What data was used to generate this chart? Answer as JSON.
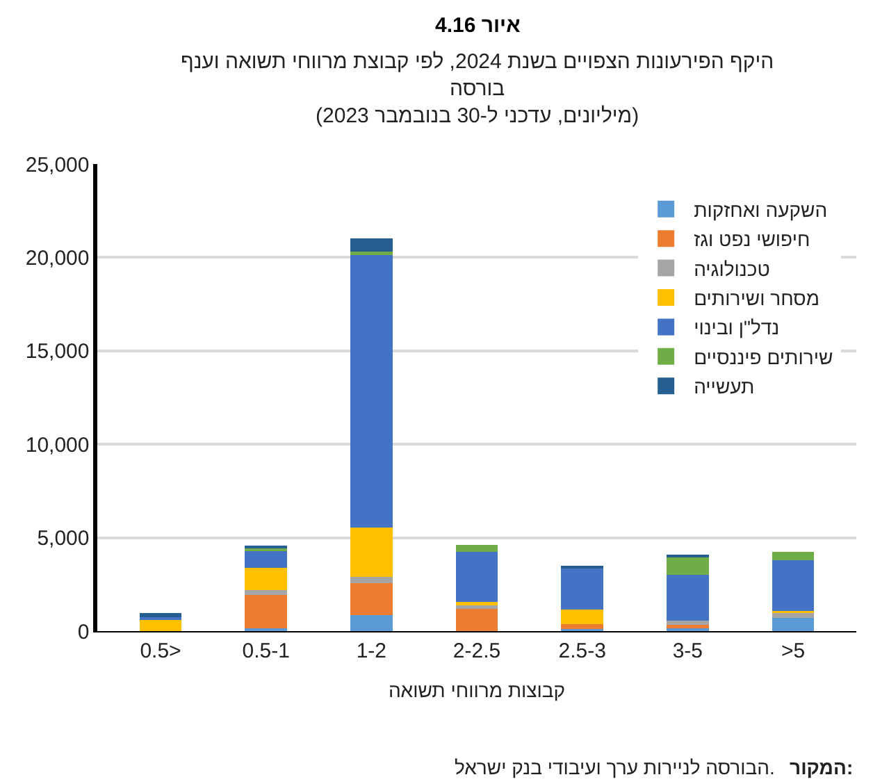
{
  "chart_data": {
    "type": "bar",
    "stacked": true,
    "title": "איור 4.16",
    "subtitle": "היקף הפירעונות הצפויים בשנת 2024, לפי קבוצת מרווחי תשואה וענף\nבורסה\n(מיליונים, עדכני ל-30 בנובמבר 2023)",
    "xlabel": "קבוצות מרווחי תשואה",
    "categories": [
      "0.5>",
      "0.5-1",
      "1-2",
      "2-2.5",
      "2.5-3",
      "3-5",
      ">5"
    ],
    "series": [
      {
        "name": "השקעה ואחזקות",
        "color": "#5b9bd5",
        "values": [
          0,
          150,
          840,
          0,
          120,
          200,
          700
        ]
      },
      {
        "name": "חיפושי נפט וגז",
        "color": "#ed7d31",
        "values": [
          0,
          1790,
          1710,
          1260,
          250,
          120,
          0
        ]
      },
      {
        "name": "טכנולוגיה",
        "color": "#a5a5a5",
        "values": [
          0,
          270,
          350,
          120,
          0,
          250,
          270
        ]
      },
      {
        "name": "מסחר ושירותים",
        "color": "#ffc000",
        "values": [
          650,
          1170,
          2650,
          180,
          770,
          0,
          100
        ]
      },
      {
        "name": "נדל\"ן ובינוי",
        "color": "#4472c4",
        "values": [
          100,
          890,
          14580,
          2680,
          2230,
          2450,
          2730
        ]
      },
      {
        "name": "שירותים פיננסיים",
        "color": "#70ad47",
        "values": [
          0,
          150,
          180,
          370,
          0,
          940,
          450
        ]
      },
      {
        "name": "תעשייה",
        "color": "#255e91",
        "values": [
          200,
          150,
          700,
          0,
          80,
          100,
          0
        ]
      }
    ],
    "ylim": [
      0,
      25000
    ],
    "yticks": [
      {
        "value": 0,
        "label": "0"
      },
      {
        "value": 5000,
        "label": "5,000"
      },
      {
        "value": 10000,
        "label": "10,000"
      },
      {
        "value": 15000,
        "label": "15,000"
      },
      {
        "value": 20000,
        "label": "20,000"
      },
      {
        "value": 25000,
        "label": "25,000"
      }
    ],
    "grid": "y",
    "legend": "top right",
    "annotations": [
      "המקור: הבורסה לניירות ערך ועיבודי בנק ישראל."
    ]
  }
}
